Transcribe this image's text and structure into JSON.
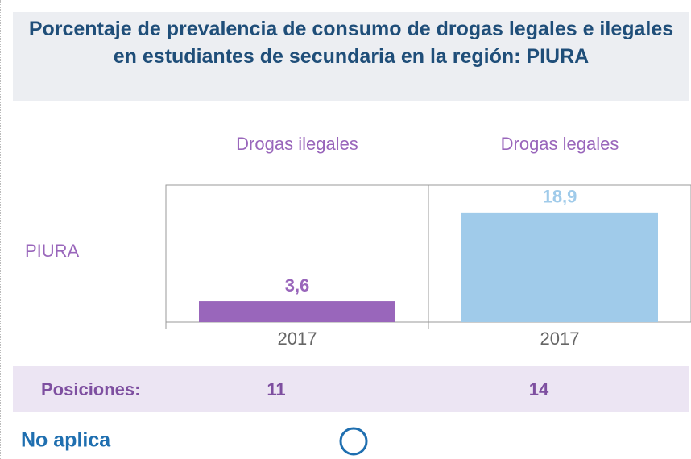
{
  "title": "Porcentaje de prevalencia de consumo de drogas legales e ilegales en estudiantes de secundaria en la región: PIURA",
  "row_label": "PIURA",
  "positions_label": "Posiciones:",
  "status": "No aplica",
  "chart_data": [
    {
      "type": "bar",
      "title": "Drogas ilegales",
      "categories": [
        "2017"
      ],
      "values": [
        3.6
      ],
      "value_labels": [
        "3,6"
      ],
      "color": "#9966bb",
      "label_color": "#9966bb",
      "ylim": [
        0,
        23.6
      ],
      "position": 11
    },
    {
      "type": "bar",
      "title": "Drogas legales",
      "categories": [
        "2017"
      ],
      "values": [
        18.9
      ],
      "value_labels": [
        "18,9"
      ],
      "color": "#a0cbea",
      "label_color": "#a0cbea",
      "ylim": [
        0,
        23.6
      ],
      "position": 14
    }
  ]
}
